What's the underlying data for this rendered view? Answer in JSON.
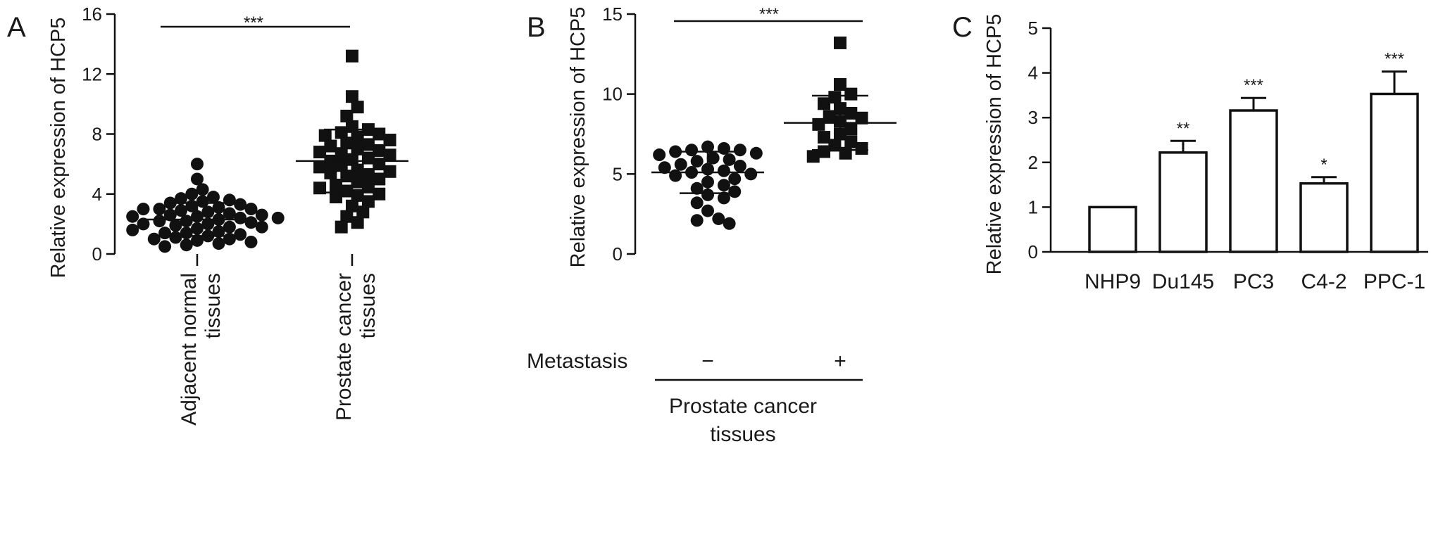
{
  "chart_data": [
    {
      "panel": "A",
      "type": "scatter",
      "ylabel": "Relative expression of HCP5",
      "ylim": [
        0,
        16
      ],
      "yticks": [
        0,
        4,
        8,
        12,
        16
      ],
      "categories": [
        "Adjacent normal tissues",
        "Prostate cancer tissues"
      ],
      "significance": "***",
      "series": [
        {
          "category": "Adjacent normal tissues",
          "marker": "circle",
          "mean": 2.3,
          "sd": 1.1,
          "values": [
            6.0,
            5.0,
            4.3,
            4.0,
            3.8,
            3.7,
            3.6,
            3.5,
            3.4,
            3.3,
            3.2,
            3.1,
            3.0,
            3.0,
            2.9,
            2.8,
            2.7,
            2.6,
            2.5,
            2.5,
            2.4,
            2.3,
            2.2,
            2.1,
            2.0,
            2.0,
            1.9,
            1.8,
            1.7,
            1.6,
            1.5,
            1.4,
            1.3,
            1.2,
            1.1,
            1.0,
            1.0,
            0.9,
            0.8,
            0.7,
            0.6,
            0.5,
            2.6,
            2.2,
            1.8,
            3.0,
            1.4,
            2.4
          ]
        },
        {
          "category": "Prostate cancer tissues",
          "marker": "square",
          "mean": 6.2,
          "sd": 2.1,
          "values": [
            13.2,
            10.5,
            9.8,
            9.2,
            8.5,
            8.3,
            8.1,
            8.0,
            7.8,
            7.6,
            7.4,
            7.2,
            7.0,
            6.8,
            6.6,
            6.4,
            6.3,
            6.2,
            6.0,
            5.9,
            5.8,
            5.6,
            5.4,
            5.2,
            5.0,
            4.8,
            4.6,
            4.4,
            4.2,
            4.0,
            3.8,
            3.5,
            3.2,
            2.8,
            2.5,
            2.1,
            1.8,
            7.3,
            6.7,
            5.5,
            4.5,
            6.9,
            5.3,
            7.9,
            3.9
          ]
        }
      ]
    },
    {
      "panel": "B",
      "type": "scatter",
      "ylabel": "Relative expression of HCP5",
      "ylim": [
        0,
        15
      ],
      "yticks": [
        0,
        5,
        10,
        15
      ],
      "row_label": "Metastasis",
      "categories": [
        "−",
        "+"
      ],
      "group_label": "Prostate cancer tissues",
      "significance": "***",
      "series": [
        {
          "category": "−",
          "marker": "circle",
          "mean": 5.1,
          "sd": 1.3,
          "values": [
            6.7,
            6.6,
            6.5,
            6.5,
            6.4,
            6.3,
            6.2,
            6.0,
            5.9,
            5.8,
            5.6,
            5.5,
            5.4,
            5.3,
            5.2,
            5.1,
            5.0,
            4.9,
            4.7,
            4.5,
            4.3,
            4.1,
            3.9,
            3.7,
            3.5,
            3.2,
            2.7,
            2.2,
            2.1,
            1.9
          ]
        },
        {
          "category": "+",
          "marker": "square",
          "mean": 8.2,
          "sd": 1.7,
          "values": [
            13.2,
            10.6,
            10.0,
            9.8,
            9.4,
            9.1,
            8.8,
            8.6,
            8.5,
            8.3,
            8.1,
            7.8,
            7.5,
            7.3,
            7.0,
            6.8,
            6.6,
            6.4,
            6.3,
            6.1
          ]
        }
      ]
    },
    {
      "panel": "C",
      "type": "bar",
      "ylabel": "Relative expression of HCP5",
      "ylim": [
        0,
        5
      ],
      "yticks": [
        0,
        1,
        2,
        3,
        4,
        5
      ],
      "categories": [
        "NHP9",
        "Du145",
        "PC3",
        "C4-2",
        "PPC-1"
      ],
      "values": [
        1.0,
        2.22,
        3.16,
        1.53,
        3.53
      ],
      "errors": [
        0.0,
        0.26,
        0.28,
        0.14,
        0.5
      ],
      "significance": [
        "",
        "**",
        "***",
        "*",
        "***"
      ]
    }
  ]
}
